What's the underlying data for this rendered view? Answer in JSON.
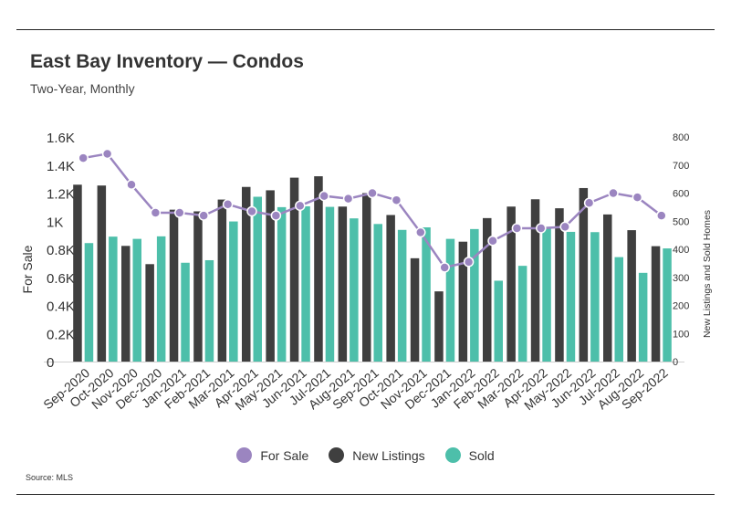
{
  "header": {
    "title": "East Bay Inventory — Condos",
    "subtitle": "Two-Year, Monthly"
  },
  "source": "Source:  MLS",
  "legend": [
    {
      "label": "For Sale",
      "color": "#9b85c0"
    },
    {
      "label": "New Listings",
      "color": "#3f3f3f"
    },
    {
      "label": "Sold",
      "color": "#4dbfaa"
    }
  ],
  "chart_data": {
    "type": "bar",
    "categories": [
      "Sep-2020",
      "Oct-2020",
      "Nov-2020",
      "Dec-2020",
      "Jan-2021",
      "Feb-2021",
      "Mar-2021",
      "Apr-2021",
      "May-2021",
      "Jun-2021",
      "Jul-2021",
      "Aug-2021",
      "Sep-2021",
      "Oct-2021",
      "Nov-2021",
      "Dec-2021",
      "Jan-2022",
      "Feb-2022",
      "Mar-2022",
      "Apr-2022",
      "May-2022",
      "Jun-2022",
      "Jul-2022",
      "Aug-2022",
      "Sep-2022"
    ],
    "series": [
      {
        "name": "New Listings",
        "type": "bar",
        "axis": "right",
        "color": "#3f3f3f",
        "values": [
          630,
          627,
          412,
          347,
          541,
          535,
          577,
          622,
          610,
          655,
          660,
          552,
          600,
          522,
          368,
          250,
          427,
          511,
          552,
          578,
          546,
          618,
          524,
          468,
          411
        ]
      },
      {
        "name": "Sold",
        "type": "bar",
        "axis": "right",
        "color": "#4dbfaa",
        "values": [
          422,
          445,
          437,
          446,
          352,
          361,
          499,
          587,
          550,
          553,
          551,
          510,
          490,
          469,
          478,
          437,
          472,
          288,
          341,
          480,
          462,
          461,
          372,
          316,
          403
        ]
      },
      {
        "name": "For Sale",
        "type": "line",
        "axis": "left",
        "color": "#9b85c0",
        "values": [
          1450,
          1480,
          1260,
          1060,
          1060,
          1040,
          1120,
          1070,
          1040,
          1110,
          1180,
          1160,
          1200,
          1150,
          920,
          670,
          710,
          860,
          950,
          950,
          960,
          1130,
          1200,
          1170,
          1040
        ]
      }
    ],
    "ylabel": "For Sale",
    "y2label": "New Listings and Sold Homes",
    "ylim": [
      0,
      1600
    ],
    "y2lim": [
      0,
      800
    ],
    "yticks": [
      "0",
      "0.2K",
      "0.4K",
      "0.6K",
      "0.8K",
      "1K",
      "1.2K",
      "1.4K",
      "1.6K"
    ],
    "y2ticks": [
      "0",
      "100",
      "200",
      "300",
      "400",
      "500",
      "600",
      "700",
      "800"
    ],
    "grid": false,
    "legend_position": "bottom"
  }
}
